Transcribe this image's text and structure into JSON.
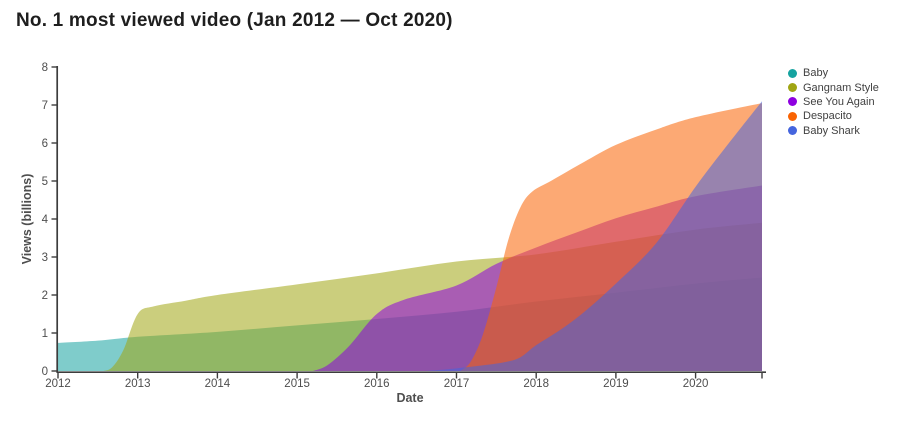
{
  "chart_data": {
    "type": "area",
    "mode": "overlapping-transparent",
    "title": "No. 1 most viewed video (Jan 2012 — Oct 2020)",
    "xlabel": "Date",
    "ylabel": "Views (billions)",
    "x_unit": "year",
    "y_unit": "billions of views",
    "x_range": [
      2012,
      2020.8333
    ],
    "ylim": [
      0,
      8
    ],
    "x_ticks": [
      2012,
      2013,
      2014,
      2015,
      2016,
      2017,
      2018,
      2019,
      2020
    ],
    "y_ticks": [
      0,
      1,
      2,
      3,
      4,
      5,
      6,
      7,
      8
    ],
    "grid": false,
    "legend_position": "right",
    "fill_opacity": 0.55,
    "axis_color": "#3d3d3d",
    "tick_label_color": "#4e4e4e",
    "series": [
      {
        "name": "Baby",
        "color": "#16a3a0",
        "points": [
          [
            2012.0,
            0.74
          ],
          [
            2012.5,
            0.8
          ],
          [
            2013,
            0.9
          ],
          [
            2014,
            1.03
          ],
          [
            2015,
            1.2
          ],
          [
            2016,
            1.37
          ],
          [
            2017,
            1.56
          ],
          [
            2018,
            1.83
          ],
          [
            2019,
            2.06
          ],
          [
            2020,
            2.3
          ],
          [
            2020.8333,
            2.46
          ]
        ]
      },
      {
        "name": "Gangnam Style",
        "color": "#a0a513",
        "points": [
          [
            2012.57,
            0
          ],
          [
            2012.68,
            0.1
          ],
          [
            2012.82,
            0.55
          ],
          [
            2013.0,
            1.5
          ],
          [
            2013.2,
            1.7
          ],
          [
            2013.6,
            1.85
          ],
          [
            2014,
            2.0
          ],
          [
            2015,
            2.28
          ],
          [
            2016,
            2.57
          ],
          [
            2017,
            2.88
          ],
          [
            2018,
            3.07
          ],
          [
            2019,
            3.4
          ],
          [
            2020,
            3.72
          ],
          [
            2020.8333,
            3.9
          ]
        ]
      },
      {
        "name": "See You Again",
        "color": "#8e00e0",
        "points": [
          [
            2015.2,
            0
          ],
          [
            2015.38,
            0.15
          ],
          [
            2015.65,
            0.65
          ],
          [
            2016.0,
            1.5
          ],
          [
            2016.35,
            1.88
          ],
          [
            2017,
            2.25
          ],
          [
            2017.5,
            2.82
          ],
          [
            2018,
            3.25
          ],
          [
            2018.5,
            3.64
          ],
          [
            2019,
            4.02
          ],
          [
            2019.5,
            4.32
          ],
          [
            2020,
            4.6
          ],
          [
            2020.8333,
            4.88
          ]
        ]
      },
      {
        "name": "Despacito",
        "color": "#f96302",
        "points": [
          [
            2017.05,
            0
          ],
          [
            2017.18,
            0.25
          ],
          [
            2017.33,
            0.95
          ],
          [
            2017.5,
            2.2
          ],
          [
            2017.65,
            3.45
          ],
          [
            2017.8,
            4.3
          ],
          [
            2017.95,
            4.72
          ],
          [
            2018.2,
            5.02
          ],
          [
            2018.6,
            5.5
          ],
          [
            2019,
            5.95
          ],
          [
            2019.5,
            6.35
          ],
          [
            2020,
            6.68
          ],
          [
            2020.8333,
            7.05
          ]
        ]
      },
      {
        "name": "Baby Shark",
        "color": "#4565de",
        "points": [
          [
            2016.6,
            0
          ],
          [
            2016.8,
            0.03
          ],
          [
            2017,
            0.07
          ],
          [
            2017.3,
            0.14
          ],
          [
            2017.6,
            0.23
          ],
          [
            2017.8,
            0.36
          ],
          [
            2018,
            0.68
          ],
          [
            2018.3,
            1.08
          ],
          [
            2018.6,
            1.55
          ],
          [
            2019,
            2.3
          ],
          [
            2019.5,
            3.35
          ],
          [
            2020,
            4.85
          ],
          [
            2020.4,
            5.95
          ],
          [
            2020.8333,
            7.1
          ]
        ]
      }
    ]
  }
}
